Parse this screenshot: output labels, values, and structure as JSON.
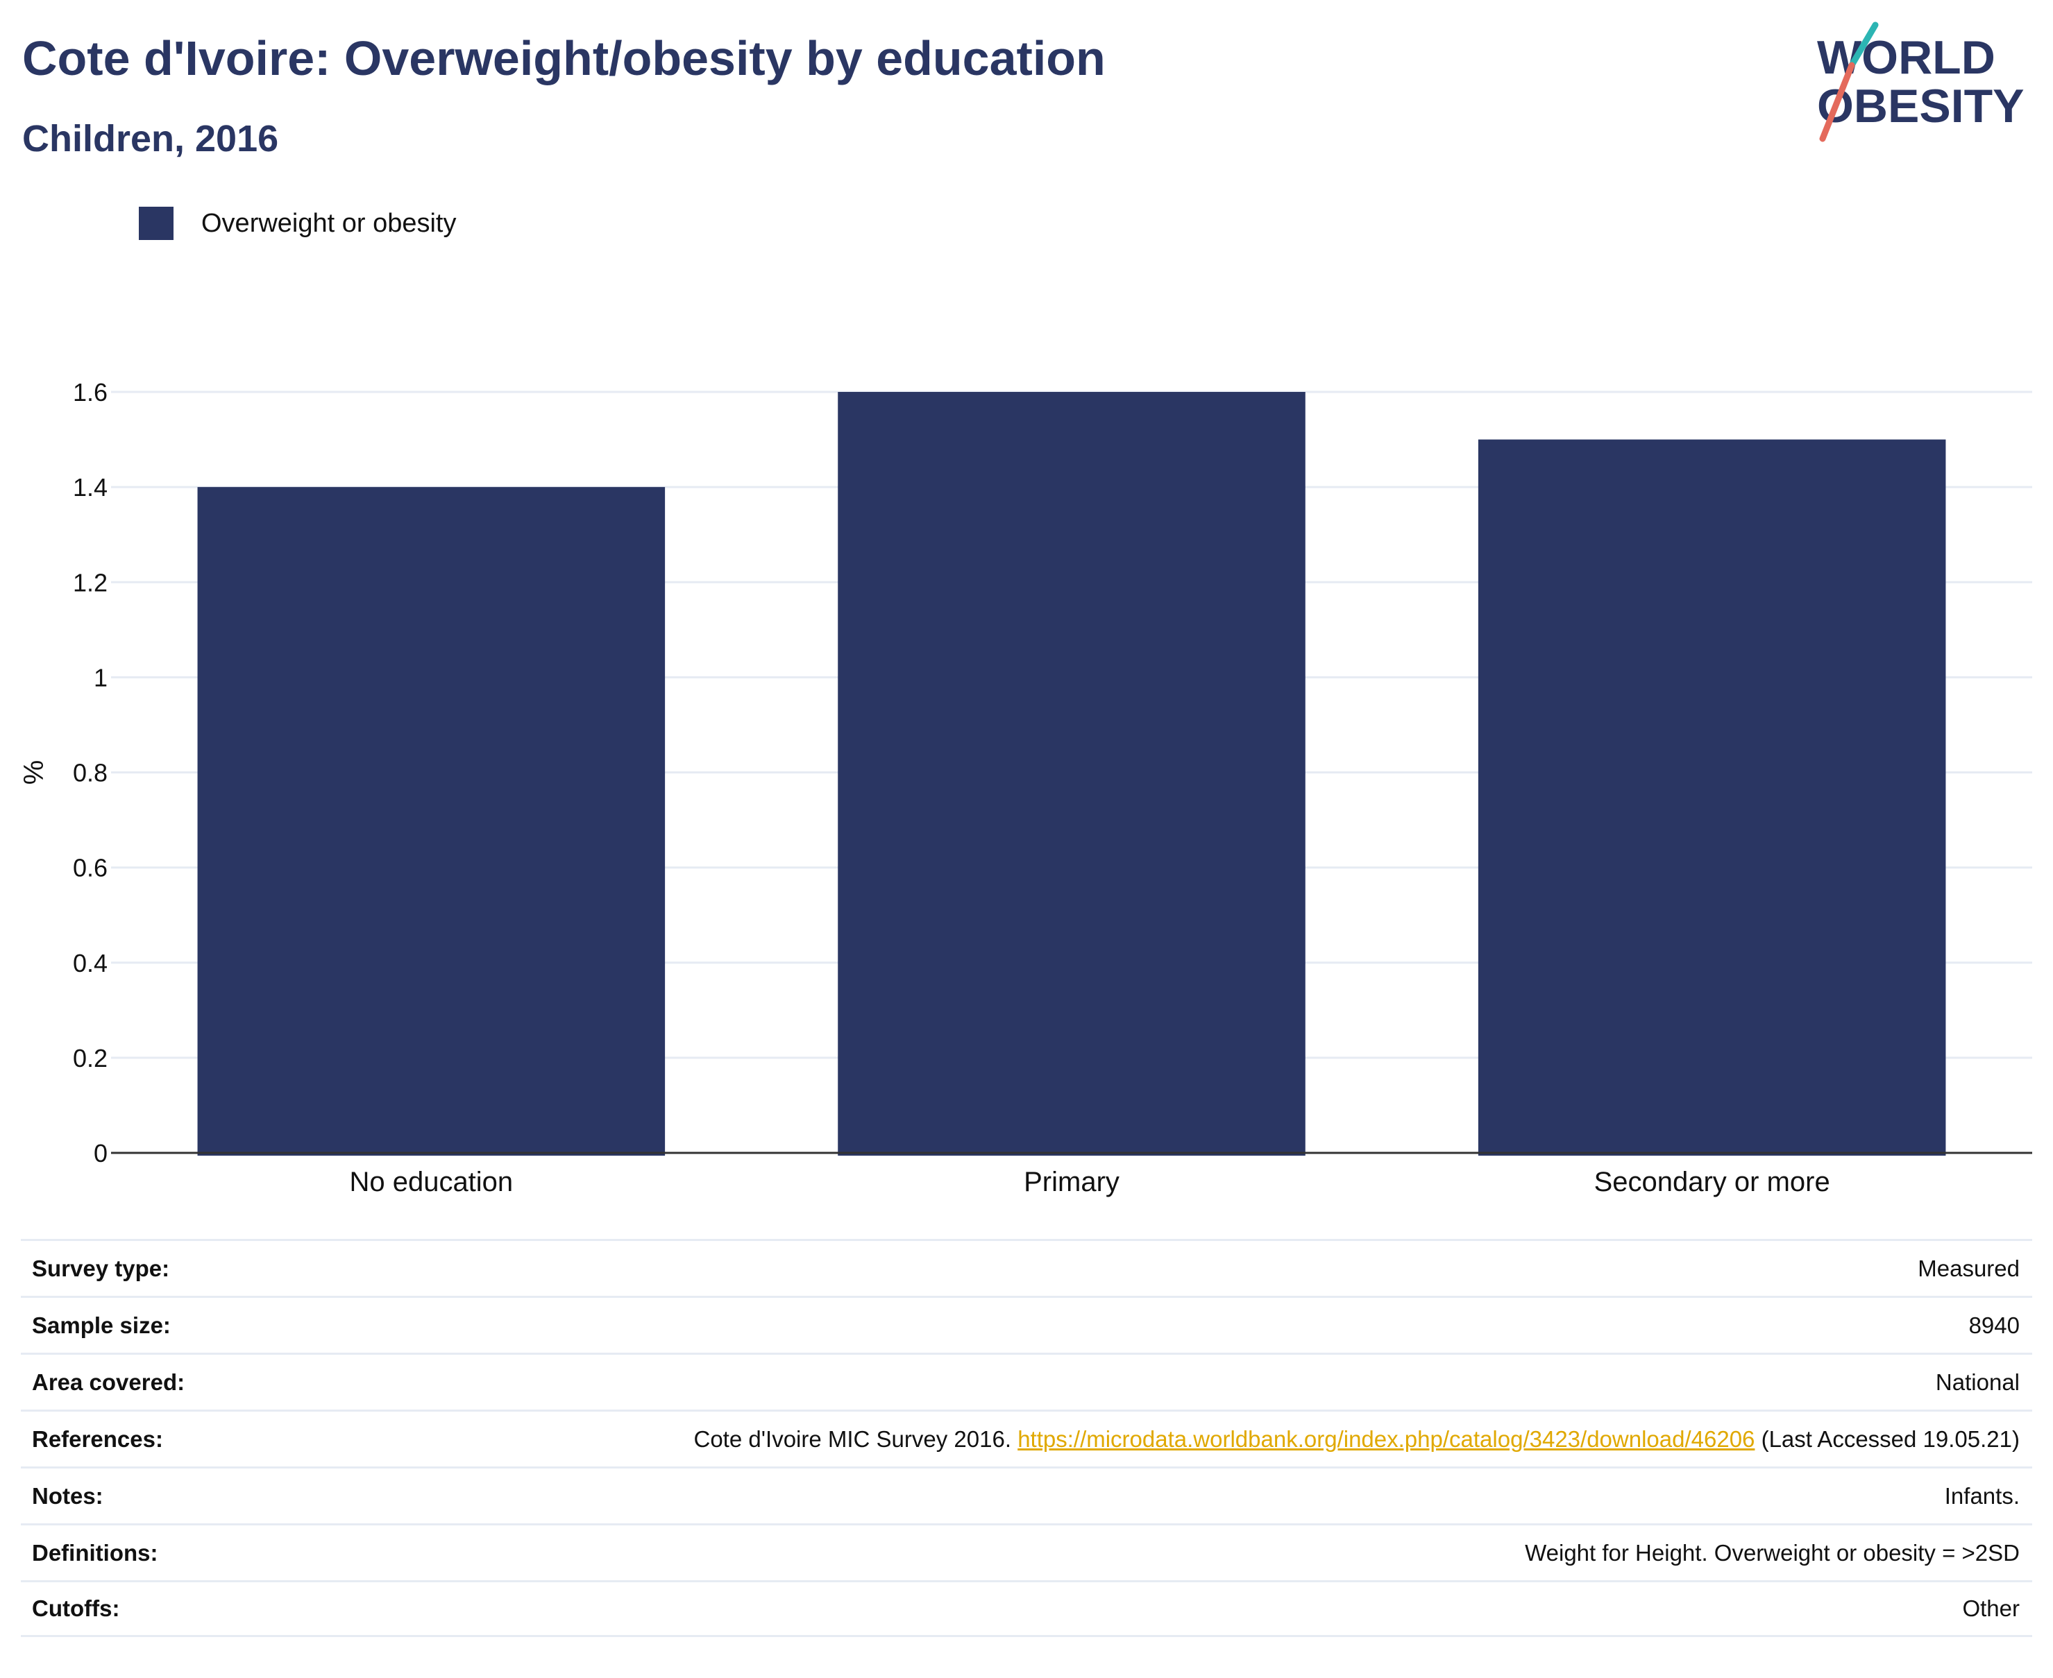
{
  "header": {
    "title": "Cote d'Ivoire: Overweight/obesity by education",
    "subtitle": "Children, 2016"
  },
  "logo": {
    "line1": "WORLD",
    "line2": "OBESITY",
    "colors": {
      "navy": "#2a3663",
      "teal": "#2cb5b3",
      "coral": "#e46a5c"
    }
  },
  "legend": {
    "label": "Overweight or obesity",
    "color": "#2a3663"
  },
  "chart_data": {
    "type": "bar",
    "categories": [
      "No education",
      "Primary",
      "Secondary or more"
    ],
    "series": [
      {
        "name": "Overweight or obesity",
        "values": [
          1.4,
          1.6,
          1.5
        ],
        "color": "#2a3663"
      }
    ],
    "xlabel": "",
    "ylabel": "%",
    "ylim": [
      0,
      1.6
    ],
    "yticks": [
      0,
      0.2,
      0.4,
      0.6,
      0.8,
      1,
      1.2,
      1.4,
      1.6
    ],
    "ytick_labels": [
      "0",
      "0.2",
      "0.4",
      "0.6",
      "0.8",
      "1",
      "1.2",
      "1.4",
      "1.6"
    ],
    "grid": true,
    "legend_position": "top-left"
  },
  "meta": {
    "survey_type": {
      "label": "Survey type:",
      "value": "Measured"
    },
    "sample_size": {
      "label": "Sample size:",
      "value": "8940"
    },
    "area_covered": {
      "label": "Area covered:",
      "value": "National"
    },
    "references": {
      "label": "References:",
      "prefix": "Cote d'Ivoire MIC Survey 2016.",
      "link": "https://microdata.worldbank.org/index.php/catalog/3423/download/46206",
      "suffix": "(Last Accessed 19.05.21)"
    },
    "notes": {
      "label": "Notes:",
      "value": "Infants."
    },
    "definitions": {
      "label": "Definitions:",
      "value": "Weight for Height. Overweight or obesity = >2SD"
    },
    "cutoffs": {
      "label": "Cutoffs:",
      "value": "Other"
    }
  }
}
